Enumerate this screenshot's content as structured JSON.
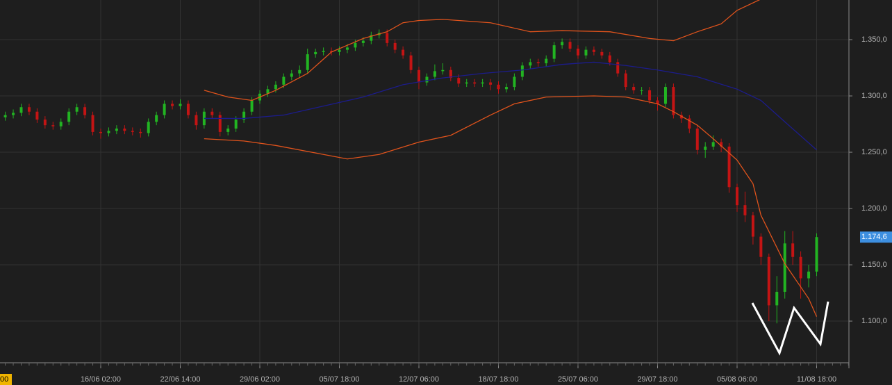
{
  "chart_data": {
    "type": "candlestick",
    "open": [
      1281,
      1283,
      1285,
      1290,
      1286,
      1279,
      1274,
      1273,
      1277,
      1286,
      1290,
      1283,
      1268,
      1267,
      1269,
      1271,
      1269,
      1268,
      1267,
      1277,
      1283,
      1293,
      1291,
      1293,
      1283,
      1274,
      1286,
      1283,
      1268,
      1271,
      1279,
      1286,
      1296,
      1302,
      1306,
      1310,
      1317,
      1320,
      1323,
      1337,
      1339,
      1340,
      1339,
      1341,
      1343,
      1347,
      1349,
      1354,
      1356,
      1347,
      1341,
      1336,
      1323,
      1312,
      1317,
      1322,
      1323,
      1316,
      1311,
      1312,
      1311,
      1312,
      1310,
      1306,
      1308,
      1317,
      1327,
      1330,
      1329,
      1333,
      1345,
      1348,
      1342,
      1336,
      1341,
      1339,
      1336,
      1330,
      1320,
      1308,
      1305,
      1305,
      1296,
      1293,
      1308,
      1283,
      1280,
      1271,
      1252,
      1255,
      1259,
      1255,
      1219,
      1203,
      1194,
      1175,
      1157,
      1114,
      1126,
      1169,
      1157,
      1138,
      1144
    ],
    "high": [
      1286,
      1288,
      1293,
      1293,
      1289,
      1282,
      1277,
      1280,
      1289,
      1293,
      1293,
      1286,
      1271,
      1272,
      1274,
      1274,
      1272,
      1271,
      1280,
      1286,
      1296,
      1296,
      1297,
      1296,
      1286,
      1289,
      1289,
      1286,
      1274,
      1282,
      1289,
      1299,
      1305,
      1309,
      1313,
      1320,
      1323,
      1327,
      1342,
      1342,
      1343,
      1343,
      1344,
      1346,
      1350,
      1352,
      1357,
      1359,
      1359,
      1350,
      1344,
      1339,
      1326,
      1320,
      1328,
      1329,
      1326,
      1319,
      1315,
      1315,
      1315,
      1315,
      1313,
      1311,
      1320,
      1330,
      1333,
      1333,
      1336,
      1348,
      1351,
      1351,
      1345,
      1344,
      1344,
      1342,
      1339,
      1333,
      1323,
      1311,
      1308,
      1308,
      1299,
      1311,
      1311,
      1286,
      1283,
      1274,
      1259,
      1265,
      1262,
      1258,
      1222,
      1215,
      1197,
      1178,
      1160,
      1140,
      1180,
      1180,
      1162,
      1150,
      1178
    ],
    "low": [
      1278,
      1280,
      1282,
      1283,
      1276,
      1271,
      1270,
      1270,
      1274,
      1283,
      1280,
      1265,
      1262,
      1264,
      1266,
      1266,
      1265,
      1263,
      1264,
      1274,
      1280,
      1288,
      1288,
      1280,
      1270,
      1271,
      1280,
      1264,
      1265,
      1268,
      1276,
      1283,
      1293,
      1299,
      1303,
      1307,
      1314,
      1317,
      1320,
      1334,
      1336,
      1336,
      1336,
      1338,
      1340,
      1344,
      1346,
      1351,
      1344,
      1338,
      1333,
      1320,
      1306,
      1309,
      1314,
      1319,
      1313,
      1308,
      1308,
      1308,
      1308,
      1305,
      1302,
      1303,
      1305,
      1314,
      1324,
      1326,
      1326,
      1330,
      1342,
      1339,
      1333,
      1333,
      1336,
      1333,
      1327,
      1317,
      1305,
      1302,
      1301,
      1293,
      1287,
      1290,
      1280,
      1276,
      1267,
      1248,
      1245,
      1252,
      1250,
      1214,
      1197,
      1188,
      1168,
      1150,
      1100,
      1098,
      1120,
      1150,
      1120,
      1130,
      1140
    ],
    "close": [
      1283,
      1285,
      1290,
      1286,
      1279,
      1274,
      1273,
      1277,
      1286,
      1290,
      1283,
      1268,
      1267,
      1269,
      1271,
      1269,
      1268,
      1267,
      1277,
      1283,
      1293,
      1291,
      1293,
      1283,
      1274,
      1286,
      1283,
      1268,
      1271,
      1279,
      1286,
      1296,
      1302,
      1306,
      1310,
      1317,
      1320,
      1323,
      1337,
      1339,
      1340,
      1339,
      1341,
      1343,
      1347,
      1349,
      1354,
      1356,
      1347,
      1341,
      1336,
      1323,
      1312,
      1317,
      1322,
      1323,
      1316,
      1311,
      1312,
      1311,
      1312,
      1310,
      1306,
      1308,
      1317,
      1327,
      1330,
      1329,
      1333,
      1345,
      1348,
      1342,
      1336,
      1341,
      1339,
      1336,
      1330,
      1320,
      1308,
      1305,
      1305,
      1296,
      1293,
      1308,
      1283,
      1280,
      1271,
      1252,
      1255,
      1259,
      1255,
      1219,
      1203,
      1194,
      1175,
      1157,
      1114,
      1126,
      1169,
      1157,
      1138,
      1144,
      1174.6
    ],
    "up_color": "#22b422",
    "down_color": "#c41414",
    "overlays": [
      {
        "color": "#1c1c8c",
        "x": [
          25,
          30,
          35,
          40,
          45,
          50,
          55,
          60,
          65,
          70,
          74,
          78,
          82,
          87,
          92,
          95,
          98,
          102
        ],
        "values": [
          1280,
          1280,
          1283,
          1291,
          1299,
          1310,
          1316,
          1320,
          1323,
          1328,
          1330,
          1327,
          1323,
          1317,
          1306,
          1296,
          1277,
          1252
        ]
      },
      {
        "color": "#e0531c",
        "x": [
          25,
          28,
          31,
          34,
          38,
          41,
          45,
          48,
          50,
          52,
          55,
          61,
          66,
          70,
          76,
          81,
          84,
          87,
          90,
          92,
          95
        ],
        "values": [
          1305,
          1299,
          1296,
          1305,
          1320,
          1339,
          1351,
          1357,
          1365,
          1367,
          1368,
          1365,
          1357,
          1358,
          1357,
          1351,
          1349,
          1357,
          1364,
          1376,
          1386
        ]
      },
      {
        "color": "#e0531c",
        "x": [
          25,
          30,
          34,
          40,
          43,
          47,
          52,
          56,
          61,
          64,
          68,
          74,
          78,
          82,
          84,
          87,
          89,
          92,
          94,
          95,
          98,
          101,
          102
        ],
        "values": [
          1262,
          1260,
          1256,
          1248,
          1244,
          1248,
          1259,
          1265,
          1283,
          1293,
          1299,
          1300,
          1299,
          1293,
          1286,
          1274,
          1262,
          1243,
          1222,
          1194,
          1151,
          1120,
          1104
        ]
      }
    ],
    "xlim": [
      -0.664,
      106.06
    ],
    "ylim": [
      1063,
      1385.2
    ],
    "yticks": [
      {
        "value": 1100,
        "label": "1.100,0"
      },
      {
        "value": 1150,
        "label": "1.150,0"
      },
      {
        "value": 1200,
        "label": "1.200,0"
      },
      {
        "value": 1250,
        "label": "1.250,0"
      },
      {
        "value": 1300,
        "label": "1.300,0"
      },
      {
        "value": 1350,
        "label": "1.350,0"
      }
    ],
    "xticks": [
      {
        "value": 12,
        "label": "16/06 02:00"
      },
      {
        "value": 22,
        "label": "22/06 14:00"
      },
      {
        "value": 32,
        "label": "29/06 02:00"
      },
      {
        "value": 42,
        "label": "05/07 18:00"
      },
      {
        "value": 52,
        "label": "12/07 06:00"
      },
      {
        "value": 62,
        "label": "18/07 18:00"
      },
      {
        "value": 72,
        "label": "25/07 06:00"
      },
      {
        "value": 82,
        "label": "29/07 18:00"
      },
      {
        "value": 92,
        "label": "05/08 06:00"
      },
      {
        "value": 102,
        "label": "11/08 18:00"
      }
    ],
    "price_marker": {
      "value": 1174.6,
      "label": "1.174,6"
    },
    "cursor_label": "00",
    "grid": true
  }
}
